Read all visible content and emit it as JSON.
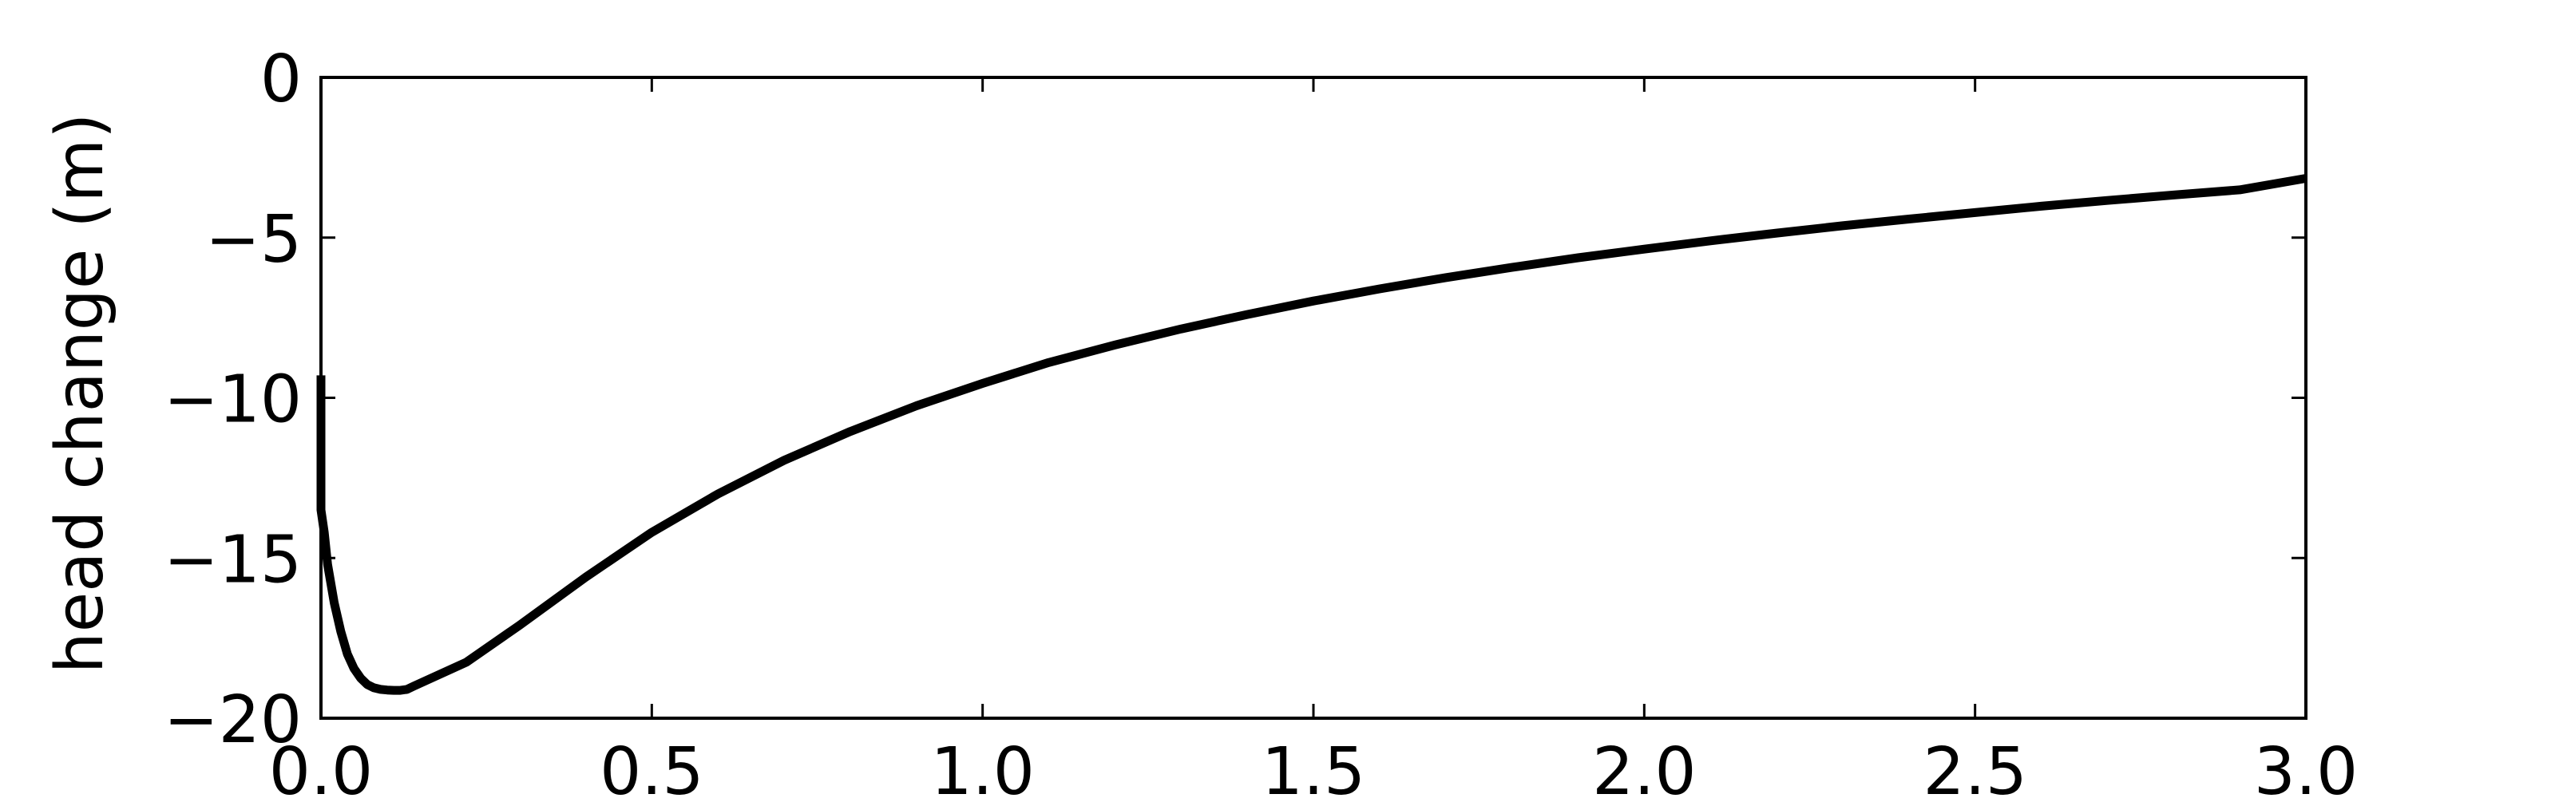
{
  "colors": {
    "background": "#ffffff",
    "axes": "#000000",
    "series_line": "#000000"
  },
  "chart_data": {
    "type": "line",
    "title": "",
    "xlabel": "",
    "ylabel": "head change (m)",
    "xlim": [
      0.0,
      3.0
    ],
    "ylim": [
      -20,
      0
    ],
    "xticks": [
      0.0,
      0.5,
      1.0,
      1.5,
      2.0,
      2.5,
      3.0
    ],
    "xtick_labels": [
      "0.0",
      "0.5",
      "1.0",
      "1.5",
      "2.0",
      "2.5",
      "3.0"
    ],
    "yticks": [
      0,
      -5,
      -10,
      -15,
      -20
    ],
    "ytick_labels": [
      "0",
      "−5",
      "−10",
      "−15",
      "−20"
    ],
    "grid": false,
    "legend": false,
    "series": [
      {
        "color": "#000000",
        "x": [
          0.0,
          0.0,
          0.005,
          0.01,
          0.02,
          0.03,
          0.04,
          0.05,
          0.06,
          0.07,
          0.08,
          0.09,
          0.1,
          0.11,
          0.12,
          0.13,
          0.14,
          0.22,
          0.3,
          0.4,
          0.5,
          0.6,
          0.7,
          0.8,
          0.9,
          1.0,
          1.1,
          1.2,
          1.3,
          1.4,
          1.5,
          1.6,
          1.7,
          1.8,
          1.9,
          2.0,
          2.1,
          2.2,
          2.3,
          2.4,
          2.5,
          2.6,
          2.7,
          2.8,
          2.9,
          3.0
        ],
        "y": [
          -9.3,
          -13.5,
          -14.2,
          -15.2,
          -16.4,
          -17.3,
          -18.0,
          -18.45,
          -18.75,
          -18.95,
          -19.05,
          -19.1,
          -19.12,
          -19.13,
          -19.13,
          -19.1,
          -19.0,
          -18.25,
          -17.1,
          -15.6,
          -14.2,
          -13.0,
          -11.95,
          -11.05,
          -10.25,
          -9.55,
          -8.9,
          -8.35,
          -7.85,
          -7.4,
          -6.98,
          -6.6,
          -6.25,
          -5.93,
          -5.63,
          -5.36,
          -5.1,
          -4.86,
          -4.63,
          -4.42,
          -4.22,
          -4.02,
          -3.84,
          -3.67,
          -3.51,
          -3.15
        ]
      }
    ]
  }
}
